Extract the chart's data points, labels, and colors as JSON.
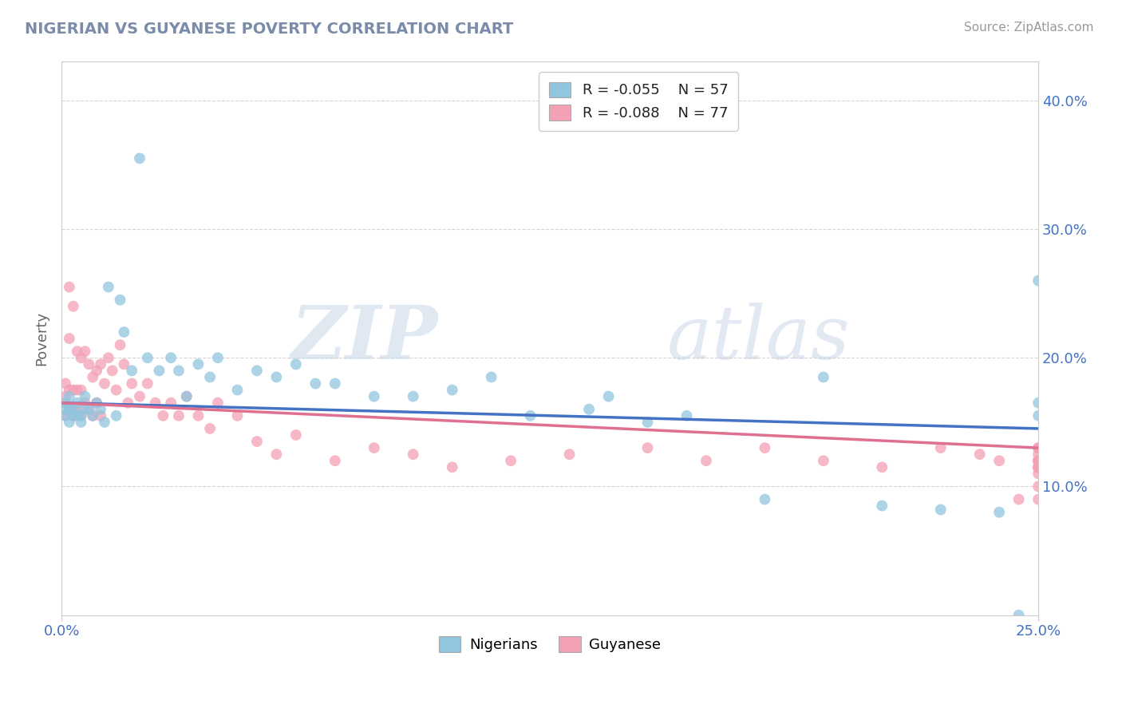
{
  "title": "NIGERIAN VS GUYANESE POVERTY CORRELATION CHART",
  "source": "Source: ZipAtlas.com",
  "ylabel": "Poverty",
  "color_nigerian": "#92c5de",
  "color_guyanese": "#f4a0b5",
  "color_nigerian_line": "#4472c4",
  "color_guyanese_line": "#e07090",
  "background_color": "#ffffff",
  "watermark_zip": "ZIP",
  "watermark_atlas": "atlas",
  "xlim": [
    0.0,
    0.25
  ],
  "ylim": [
    0.0,
    0.43
  ],
  "nigerian_x": [
    0.001,
    0.001,
    0.001,
    0.002,
    0.002,
    0.002,
    0.003,
    0.003,
    0.004,
    0.004,
    0.005,
    0.005,
    0.006,
    0.006,
    0.007,
    0.008,
    0.009,
    0.01,
    0.011,
    0.012,
    0.014,
    0.015,
    0.016,
    0.018,
    0.02,
    0.022,
    0.025,
    0.028,
    0.03,
    0.032,
    0.035,
    0.038,
    0.04,
    0.045,
    0.05,
    0.055,
    0.06,
    0.065,
    0.07,
    0.08,
    0.09,
    0.1,
    0.11,
    0.12,
    0.135,
    0.14,
    0.15,
    0.16,
    0.18,
    0.195,
    0.21,
    0.225,
    0.24,
    0.245,
    0.25,
    0.25,
    0.25
  ],
  "nigerian_y": [
    0.155,
    0.16,
    0.165,
    0.15,
    0.16,
    0.17,
    0.155,
    0.16,
    0.155,
    0.165,
    0.15,
    0.155,
    0.16,
    0.17,
    0.16,
    0.155,
    0.165,
    0.16,
    0.15,
    0.255,
    0.155,
    0.245,
    0.22,
    0.19,
    0.355,
    0.2,
    0.19,
    0.2,
    0.19,
    0.17,
    0.195,
    0.185,
    0.2,
    0.175,
    0.19,
    0.185,
    0.195,
    0.18,
    0.18,
    0.17,
    0.17,
    0.175,
    0.185,
    0.155,
    0.16,
    0.17,
    0.15,
    0.155,
    0.09,
    0.185,
    0.085,
    0.082,
    0.08,
    0.0,
    0.165,
    0.155,
    0.26
  ],
  "guyanese_x": [
    0.001,
    0.001,
    0.001,
    0.002,
    0.002,
    0.002,
    0.002,
    0.003,
    0.003,
    0.003,
    0.004,
    0.004,
    0.004,
    0.005,
    0.005,
    0.005,
    0.006,
    0.006,
    0.007,
    0.007,
    0.008,
    0.008,
    0.009,
    0.009,
    0.01,
    0.01,
    0.011,
    0.012,
    0.013,
    0.014,
    0.015,
    0.016,
    0.017,
    0.018,
    0.02,
    0.022,
    0.024,
    0.026,
    0.028,
    0.03,
    0.032,
    0.035,
    0.038,
    0.04,
    0.045,
    0.05,
    0.055,
    0.06,
    0.07,
    0.08,
    0.09,
    0.1,
    0.115,
    0.13,
    0.15,
    0.165,
    0.18,
    0.195,
    0.21,
    0.225,
    0.235,
    0.24,
    0.245,
    0.25,
    0.25,
    0.25,
    0.25,
    0.25,
    0.25,
    0.25,
    0.25,
    0.25,
    0.25,
    0.25,
    0.25,
    0.25,
    0.25
  ],
  "guyanese_y": [
    0.155,
    0.17,
    0.18,
    0.16,
    0.255,
    0.175,
    0.215,
    0.155,
    0.175,
    0.24,
    0.16,
    0.175,
    0.205,
    0.155,
    0.175,
    0.2,
    0.165,
    0.205,
    0.16,
    0.195,
    0.155,
    0.185,
    0.165,
    0.19,
    0.155,
    0.195,
    0.18,
    0.2,
    0.19,
    0.175,
    0.21,
    0.195,
    0.165,
    0.18,
    0.17,
    0.18,
    0.165,
    0.155,
    0.165,
    0.155,
    0.17,
    0.155,
    0.145,
    0.165,
    0.155,
    0.135,
    0.125,
    0.14,
    0.12,
    0.13,
    0.125,
    0.115,
    0.12,
    0.125,
    0.13,
    0.12,
    0.13,
    0.12,
    0.115,
    0.13,
    0.125,
    0.12,
    0.09,
    0.13,
    0.12,
    0.115,
    0.11,
    0.12,
    0.09,
    0.13,
    0.12,
    0.115,
    0.125,
    0.115,
    0.1,
    0.12,
    0.115
  ],
  "line_nig_x0": 0.0,
  "line_nig_x1": 0.25,
  "line_nig_y0": 0.165,
  "line_nig_y1": 0.145,
  "line_guy_x0": 0.0,
  "line_guy_x1": 0.25,
  "line_guy_y0": 0.165,
  "line_guy_y1": 0.13
}
